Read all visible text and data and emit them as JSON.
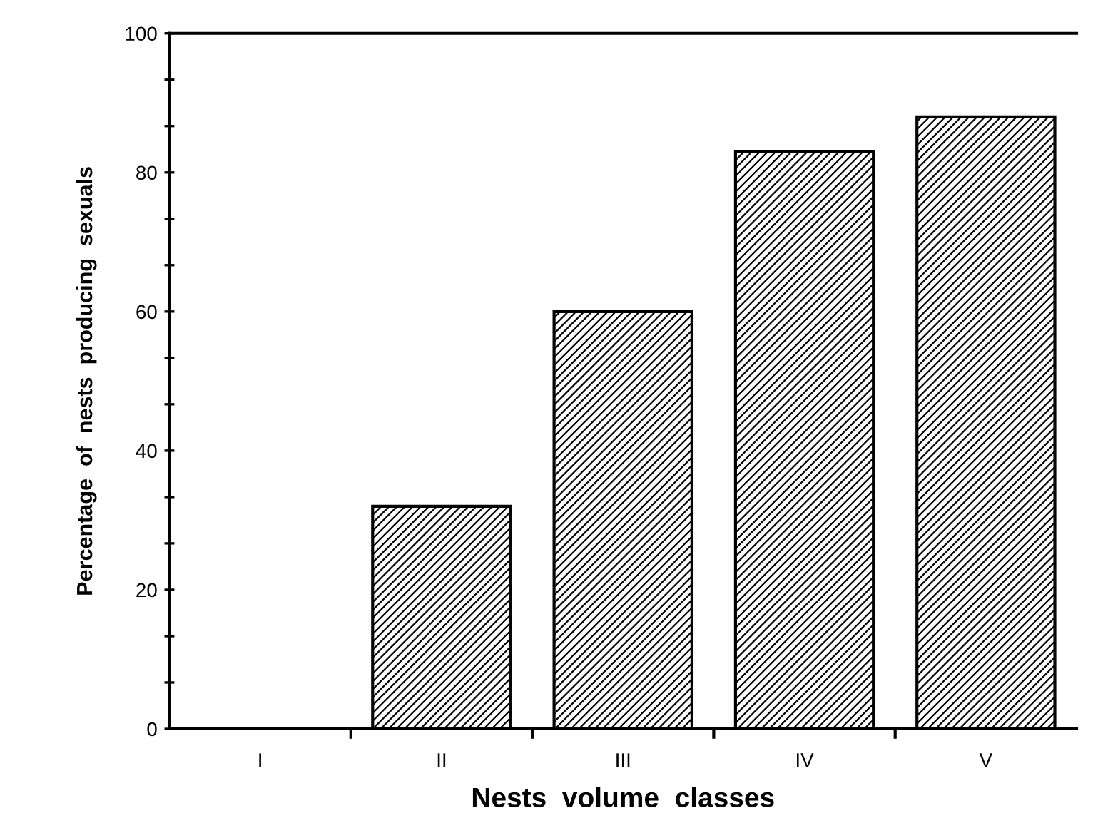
{
  "chart_data": {
    "type": "bar",
    "xlabel": "Nests  volume  classes",
    "ylabel": "Percentage  of  nests  producing  sexuals",
    "categories": [
      "I",
      "II",
      "III",
      "IV",
      "V"
    ],
    "values": [
      0,
      32,
      60,
      83,
      88
    ],
    "color": "#000000",
    "ylim": [
      0,
      100
    ],
    "yticks": [
      0,
      {
        "value": 6.67,
        "label": null
      },
      {
        "value": 13.33,
        "label": null
      },
      20,
      {
        "value": 26.67,
        "label": null
      },
      {
        "value": 33.33,
        "label": null
      },
      40,
      {
        "value": 46.67,
        "label": null
      },
      {
        "value": 53.33,
        "label": null
      },
      60,
      {
        "value": 66.67,
        "label": null
      },
      {
        "value": 73.33,
        "label": null
      },
      80,
      {
        "value": 86.67,
        "label": null
      },
      {
        "value": 93.33,
        "label": null
      },
      100
    ],
    "grid": false
  }
}
